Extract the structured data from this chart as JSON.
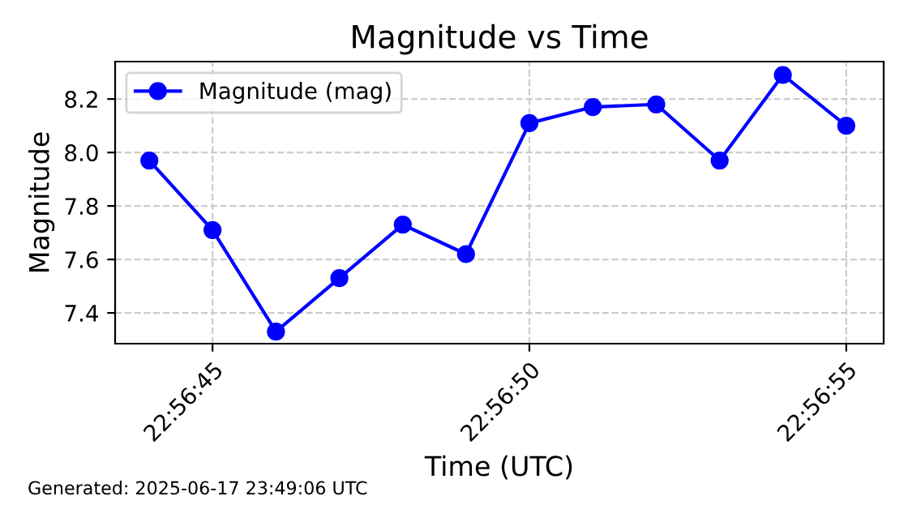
{
  "chart_data": {
    "type": "line",
    "title": "Magnitude vs Time",
    "xlabel": "Time (UTC)",
    "ylabel": "Magnitude",
    "x": [
      22.945556,
      22.945833,
      22.946111,
      22.946389,
      22.946667,
      22.946944,
      22.947222,
      22.9475,
      22.947778,
      22.948056,
      22.948333,
      22.948611
    ],
    "series": [
      {
        "name": "Magnitude (mag)",
        "color": "#0000ff",
        "values": [
          7.97,
          7.71,
          7.33,
          7.53,
          7.73,
          7.62,
          8.11,
          8.17,
          8.18,
          7.97,
          8.29,
          8.1
        ]
      }
    ],
    "xlim": [
      22.945406,
      22.948775
    ],
    "xticks": [
      {
        "value": 22.945833,
        "label": "22:56:45"
      },
      {
        "value": 22.947222,
        "label": "22:56:50"
      },
      {
        "value": 22.948611,
        "label": "22:56:55"
      }
    ],
    "ylim": [
      7.285,
      8.34
    ],
    "yticks": [
      {
        "value": 7.4,
        "label": "7.4"
      },
      {
        "value": 7.6,
        "label": "7.6"
      },
      {
        "value": 7.8,
        "label": "7.8"
      },
      {
        "value": 8.0,
        "label": "8.0"
      },
      {
        "value": 8.2,
        "label": "8.2"
      }
    ],
    "grid": true,
    "legend": "top left",
    "marker": "circle",
    "line_style": "solid",
    "annotations": [
      "Generated: 2025-06-17 23:49:06 UTC"
    ]
  }
}
